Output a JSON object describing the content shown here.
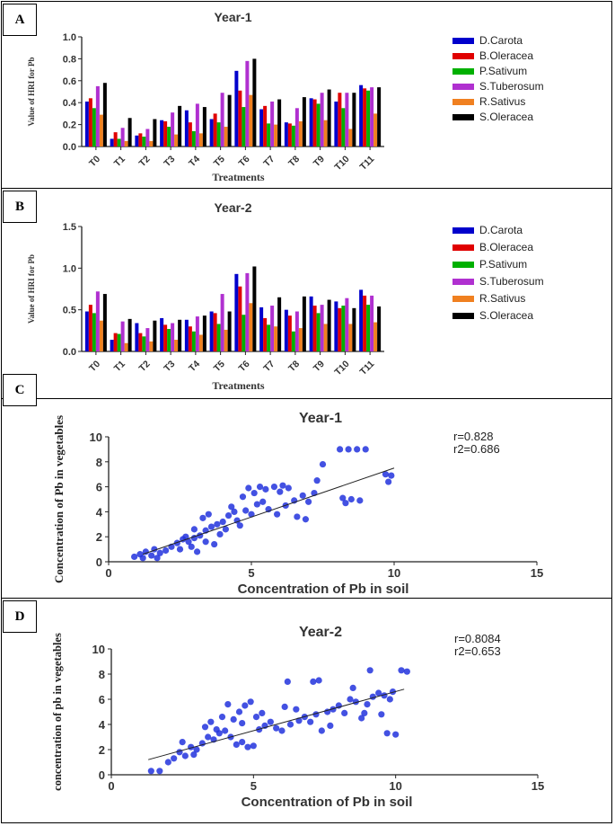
{
  "panels": [
    "A",
    "B",
    "C",
    "D"
  ],
  "chart_data": [
    {
      "type": "bar",
      "title": "Year-1",
      "xlabel": "Treatments",
      "ylabel": "Value of HRI for Pb",
      "ylim": [
        0,
        1.0
      ],
      "yticks": [
        0.0,
        0.2,
        0.4,
        0.6,
        0.8,
        1.0
      ],
      "ytick_labels": [
        "0.0",
        "0.2",
        "0.4",
        "0.6",
        "0.8",
        "1.0"
      ],
      "categories": [
        "T0",
        "T1",
        "T2",
        "T3",
        "T4",
        "T5",
        "T6",
        "T7",
        "T8",
        "T9",
        "T10",
        "T11"
      ],
      "legend_position": "right",
      "series": [
        {
          "name": "D.Carota",
          "color": "#0000cc",
          "values": [
            0.41,
            0.07,
            0.1,
            0.24,
            0.33,
            0.25,
            0.69,
            0.34,
            0.22,
            0.44,
            0.41,
            0.56
          ]
        },
        {
          "name": "B.Oleracea",
          "color": "#e00000",
          "values": [
            0.44,
            0.13,
            0.12,
            0.23,
            0.22,
            0.3,
            0.51,
            0.37,
            0.21,
            0.43,
            0.49,
            0.53
          ]
        },
        {
          "name": "P.Sativum",
          "color": "#00b000",
          "values": [
            0.35,
            0.07,
            0.09,
            0.18,
            0.14,
            0.22,
            0.36,
            0.21,
            0.19,
            0.39,
            0.35,
            0.51
          ]
        },
        {
          "name": "S.Tuberosum",
          "color": "#b030d0",
          "values": [
            0.55,
            0.17,
            0.16,
            0.31,
            0.39,
            0.49,
            0.78,
            0.41,
            0.35,
            0.49,
            0.49,
            0.54
          ]
        },
        {
          "name": "R.Sativus",
          "color": "#f08020",
          "values": [
            0.29,
            0.05,
            0.05,
            0.11,
            0.12,
            0.18,
            0.47,
            0.2,
            0.23,
            0.24,
            0.16,
            0.3
          ]
        },
        {
          "name": "S.Oleracea",
          "color": "#000000",
          "values": [
            0.58,
            0.26,
            0.25,
            0.37,
            0.36,
            0.47,
            0.8,
            0.43,
            0.45,
            0.52,
            0.49,
            0.54
          ]
        }
      ]
    },
    {
      "type": "bar",
      "title": "Year-2",
      "xlabel": "Treatments",
      "ylabel": "Value of HRI for Pb",
      "ylim": [
        0,
        1.5
      ],
      "yticks": [
        0.0,
        0.5,
        1.0,
        1.5
      ],
      "ytick_labels": [
        "0.0",
        "0.5",
        "1.0",
        "1.5"
      ],
      "categories": [
        "T0",
        "T1",
        "T2",
        "T3",
        "T4",
        "T5",
        "T6",
        "T7",
        "T8",
        "T9",
        "T10",
        "T11"
      ],
      "legend_position": "right",
      "series": [
        {
          "name": "D.Carota",
          "color": "#0000cc",
          "values": [
            0.48,
            0.14,
            0.34,
            0.4,
            0.38,
            0.48,
            0.93,
            0.53,
            0.5,
            0.66,
            0.6,
            0.74
          ]
        },
        {
          "name": "B.Oleracea",
          "color": "#e00000",
          "values": [
            0.56,
            0.22,
            0.22,
            0.32,
            0.3,
            0.46,
            0.78,
            0.4,
            0.43,
            0.55,
            0.52,
            0.67
          ]
        },
        {
          "name": "P.Sativum",
          "color": "#00b000",
          "values": [
            0.46,
            0.21,
            0.18,
            0.27,
            0.24,
            0.33,
            0.44,
            0.32,
            0.24,
            0.46,
            0.55,
            0.56
          ]
        },
        {
          "name": "S.Tuberosum",
          "color": "#b030d0",
          "values": [
            0.72,
            0.36,
            0.28,
            0.34,
            0.42,
            0.69,
            0.94,
            0.55,
            0.48,
            0.56,
            0.64,
            0.67
          ]
        },
        {
          "name": "R.Sativus",
          "color": "#f08020",
          "values": [
            0.37,
            0.1,
            0.12,
            0.14,
            0.2,
            0.26,
            0.58,
            0.3,
            0.28,
            0.33,
            0.33,
            0.35
          ]
        },
        {
          "name": "S.Oleracea",
          "color": "#000000",
          "values": [
            0.69,
            0.39,
            0.37,
            0.38,
            0.43,
            0.48,
            1.02,
            0.65,
            0.66,
            0.62,
            0.52,
            0.54
          ]
        }
      ]
    },
    {
      "type": "scatter",
      "title": "Year-1",
      "xlabel": "Concentration of Pb in soil",
      "ylabel": "Concentration of Pb in vegetables",
      "xlim": [
        0,
        15
      ],
      "ylim": [
        0,
        10
      ],
      "xticks": [
        0,
        5,
        10,
        15
      ],
      "yticks": [
        0,
        2,
        4,
        6,
        8,
        10
      ],
      "xtick_labels": [
        "0",
        "5",
        "10",
        "15"
      ],
      "ytick_labels": [
        "0",
        "2",
        "4",
        "6",
        "8",
        "10"
      ],
      "r_label": "r=0.828",
      "r2_label": "r2=0.686",
      "trend_line": [
        [
          1.2,
          0.6
        ],
        [
          10.0,
          7.5
        ]
      ],
      "color": "#2233dd",
      "points": [
        [
          0.9,
          0.4
        ],
        [
          1.1,
          0.6
        ],
        [
          1.3,
          0.8
        ],
        [
          1.5,
          0.5
        ],
        [
          1.6,
          1.0
        ],
        [
          1.8,
          0.7
        ],
        [
          2.0,
          0.9
        ],
        [
          1.2,
          0.3
        ],
        [
          1.7,
          0.3
        ],
        [
          2.2,
          1.2
        ],
        [
          2.4,
          1.5
        ],
        [
          2.6,
          1.8
        ],
        [
          2.8,
          1.6
        ],
        [
          3.0,
          1.9
        ],
        [
          3.2,
          2.1
        ],
        [
          2.5,
          1.0
        ],
        [
          2.9,
          1.2
        ],
        [
          3.1,
          0.8
        ],
        [
          3.4,
          2.5
        ],
        [
          3.6,
          2.8
        ],
        [
          3.8,
          3.0
        ],
        [
          4.0,
          3.2
        ],
        [
          3.3,
          3.5
        ],
        [
          3.5,
          3.8
        ],
        [
          4.2,
          3.7
        ],
        [
          4.4,
          4.0
        ],
        [
          4.1,
          2.6
        ],
        [
          4.6,
          2.9
        ],
        [
          4.3,
          4.4
        ],
        [
          4.8,
          4.1
        ],
        [
          5.0,
          3.8
        ],
        [
          5.2,
          4.6
        ],
        [
          4.7,
          5.2
        ],
        [
          5.4,
          4.8
        ],
        [
          5.1,
          5.5
        ],
        [
          5.5,
          5.8
        ],
        [
          5.8,
          6.0
        ],
        [
          6.0,
          5.6
        ],
        [
          6.3,
          5.9
        ],
        [
          5.6,
          4.2
        ],
        [
          5.9,
          3.8
        ],
        [
          6.2,
          4.5
        ],
        [
          6.5,
          4.9
        ],
        [
          6.8,
          5.3
        ],
        [
          7.0,
          4.8
        ],
        [
          7.2,
          5.5
        ],
        [
          6.6,
          3.6
        ],
        [
          6.9,
          3.4
        ],
        [
          6.1,
          6.1
        ],
        [
          5.3,
          6.0
        ],
        [
          4.9,
          5.9
        ],
        [
          4.5,
          3.3
        ],
        [
          3.9,
          2.2
        ],
        [
          3.7,
          1.4
        ],
        [
          3.4,
          1.6
        ],
        [
          2.7,
          2.0
        ],
        [
          3.0,
          2.6
        ],
        [
          8.1,
          9.0
        ],
        [
          8.4,
          9.0
        ],
        [
          8.7,
          9.0
        ],
        [
          9.0,
          9.0
        ],
        [
          8.2,
          5.1
        ],
        [
          8.5,
          5.0
        ],
        [
          8.8,
          4.9
        ],
        [
          8.3,
          4.7
        ],
        [
          9.7,
          7.0
        ],
        [
          9.9,
          6.9
        ],
        [
          9.8,
          6.4
        ],
        [
          7.5,
          7.8
        ],
        [
          7.3,
          6.5
        ]
      ]
    },
    {
      "type": "scatter",
      "title": "Year-2",
      "xlabel": "Concentration of Pb in soil",
      "ylabel": "concentration of pb in vegetables",
      "xlim": [
        0,
        15
      ],
      "ylim": [
        0,
        10
      ],
      "xticks": [
        0,
        5,
        10,
        15
      ],
      "yticks": [
        0,
        2,
        4,
        6,
        8,
        10
      ],
      "xtick_labels": [
        "0",
        "5",
        "10",
        "15"
      ],
      "ytick_labels": [
        "0",
        "2",
        "4",
        "6",
        "8",
        "10"
      ],
      "r_label": "r=0.8084",
      "r2_label": "r2=0.653",
      "trend_line": [
        [
          1.3,
          1.2
        ],
        [
          10.3,
          6.8
        ]
      ],
      "color": "#2233dd",
      "points": [
        [
          1.4,
          0.3
        ],
        [
          1.7,
          0.3
        ],
        [
          2.0,
          1.0
        ],
        [
          2.2,
          1.3
        ],
        [
          2.4,
          1.8
        ],
        [
          2.6,
          1.5
        ],
        [
          2.8,
          2.2
        ],
        [
          3.0,
          2.0
        ],
        [
          2.5,
          2.6
        ],
        [
          3.2,
          2.5
        ],
        [
          3.4,
          3.0
        ],
        [
          3.6,
          2.8
        ],
        [
          3.8,
          3.3
        ],
        [
          4.0,
          3.5
        ],
        [
          3.5,
          4.2
        ],
        [
          3.7,
          3.6
        ],
        [
          4.2,
          3.0
        ],
        [
          4.4,
          2.4
        ],
        [
          4.6,
          2.6
        ],
        [
          4.8,
          2.2
        ],
        [
          5.0,
          2.3
        ],
        [
          4.3,
          4.4
        ],
        [
          4.5,
          5.0
        ],
        [
          4.7,
          5.5
        ],
        [
          4.9,
          5.8
        ],
        [
          4.1,
          5.6
        ],
        [
          3.9,
          4.6
        ],
        [
          5.2,
          3.6
        ],
        [
          5.4,
          3.9
        ],
        [
          5.6,
          4.2
        ],
        [
          5.8,
          3.7
        ],
        [
          6.0,
          3.5
        ],
        [
          6.3,
          4.0
        ],
        [
          6.6,
          4.3
        ],
        [
          6.2,
          7.4
        ],
        [
          6.8,
          4.6
        ],
        [
          7.0,
          4.2
        ],
        [
          7.2,
          4.8
        ],
        [
          7.4,
          3.5
        ],
        [
          7.6,
          5.0
        ],
        [
          7.8,
          5.2
        ],
        [
          8.0,
          5.5
        ],
        [
          8.2,
          4.9
        ],
        [
          7.1,
          7.4
        ],
        [
          7.3,
          7.5
        ],
        [
          8.4,
          6.0
        ],
        [
          8.6,
          5.8
        ],
        [
          8.8,
          4.5
        ],
        [
          9.0,
          5.6
        ],
        [
          9.2,
          6.2
        ],
        [
          9.4,
          6.5
        ],
        [
          9.6,
          6.3
        ],
        [
          9.8,
          6.0
        ],
        [
          9.7,
          3.3
        ],
        [
          10.0,
          3.2
        ],
        [
          9.1,
          8.3
        ],
        [
          10.2,
          8.3
        ],
        [
          10.4,
          8.2
        ],
        [
          9.5,
          4.8
        ],
        [
          9.9,
          6.6
        ],
        [
          5.3,
          4.9
        ],
        [
          6.5,
          5.2
        ],
        [
          4.6,
          4.1
        ],
        [
          3.3,
          3.8
        ],
        [
          2.9,
          1.6
        ],
        [
          5.1,
          4.6
        ],
        [
          6.1,
          5.4
        ],
        [
          8.5,
          6.9
        ],
        [
          7.7,
          3.9
        ],
        [
          8.9,
          4.9
        ]
      ]
    }
  ]
}
